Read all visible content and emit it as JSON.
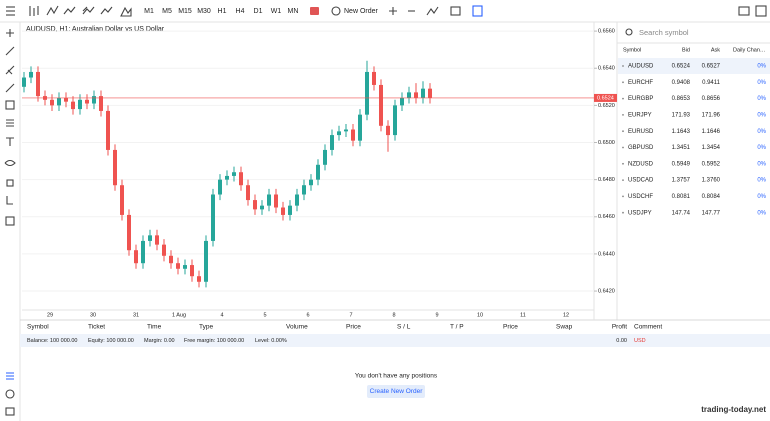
{
  "toolbar": {
    "timeframes": [
      "M1",
      "M5",
      "M15",
      "M30",
      "H1",
      "H4",
      "D1",
      "W1",
      "MN"
    ],
    "new_order": "New Order"
  },
  "chart_data": {
    "type": "candlestick",
    "title": "AUDUSD, H1: Australian Dollar vs US Dollar",
    "x_labels": [
      "29",
      "30",
      "31",
      "1 Aug",
      "4",
      "5",
      "6",
      "7",
      "8",
      "9",
      "10",
      "11",
      "12"
    ],
    "open": [
      0.653,
      0.6535,
      0.6538,
      0.6525,
      0.6523,
      0.652,
      0.6524,
      0.6522,
      0.6518,
      0.6523,
      0.6521,
      0.6525,
      0.6517,
      0.6496,
      0.6477,
      0.6461,
      0.6442,
      0.6435,
      0.6447,
      0.645,
      0.6445,
      0.6439,
      0.6435,
      0.6432,
      0.6434,
      0.6428,
      0.6425,
      0.6447,
      0.6472,
      0.648,
      0.6482,
      0.6484,
      0.6477,
      0.6469,
      0.6464,
      0.6466,
      0.6472,
      0.6465,
      0.6461,
      0.6466,
      0.6472,
      0.6477,
      0.648,
      0.6488,
      0.6496,
      0.6504,
      0.6506,
      0.6507,
      0.6501,
      0.6515,
      0.6538,
      0.6531,
      0.6509,
      0.6504,
      0.652,
      0.6524,
      0.6527,
      0.6524,
      0.6529
    ],
    "high": [
      0.6538,
      0.6541,
      0.6541,
      0.6528,
      0.6526,
      0.6527,
      0.6527,
      0.6525,
      0.6526,
      0.6526,
      0.6528,
      0.6528,
      0.652,
      0.6499,
      0.648,
      0.6464,
      0.6445,
      0.645,
      0.6453,
      0.6453,
      0.6448,
      0.6442,
      0.6438,
      0.6437,
      0.6437,
      0.6431,
      0.645,
      0.6475,
      0.6483,
      0.6485,
      0.6487,
      0.6487,
      0.648,
      0.6472,
      0.6469,
      0.6475,
      0.6475,
      0.6468,
      0.6469,
      0.6475,
      0.648,
      0.6483,
      0.6491,
      0.6499,
      0.6507,
      0.6509,
      0.651,
      0.651,
      0.6518,
      0.6544,
      0.6541,
      0.6534,
      0.6512,
      0.6523,
      0.6527,
      0.653,
      0.6532,
      0.6533,
      0.6532
    ],
    "low": [
      0.6527,
      0.6532,
      0.6522,
      0.652,
      0.6517,
      0.6517,
      0.6519,
      0.6515,
      0.6515,
      0.6518,
      0.6518,
      0.6514,
      0.6493,
      0.6474,
      0.6458,
      0.6439,
      0.6432,
      0.6432,
      0.6444,
      0.6442,
      0.6436,
      0.6432,
      0.6429,
      0.6429,
      0.6425,
      0.6422,
      0.6422,
      0.6444,
      0.6469,
      0.6477,
      0.6479,
      0.6474,
      0.6466,
      0.6461,
      0.6461,
      0.6463,
      0.6462,
      0.6458,
      0.6458,
      0.6463,
      0.6469,
      0.6474,
      0.6477,
      0.6485,
      0.6493,
      0.6501,
      0.6503,
      0.6498,
      0.6498,
      0.6512,
      0.6528,
      0.6506,
      0.6495,
      0.6501,
      0.6517,
      0.6521,
      0.6521,
      0.6521,
      0.6521
    ],
    "close": [
      0.6535,
      0.6538,
      0.6525,
      0.6523,
      0.652,
      0.6524,
      0.6522,
      0.6518,
      0.6523,
      0.6521,
      0.6525,
      0.6517,
      0.6496,
      0.6477,
      0.6461,
      0.6442,
      0.6435,
      0.6447,
      0.645,
      0.6445,
      0.6439,
      0.6435,
      0.6432,
      0.6434,
      0.6428,
      0.6425,
      0.6447,
      0.6472,
      0.648,
      0.6482,
      0.6484,
      0.6477,
      0.6469,
      0.6464,
      0.6466,
      0.6472,
      0.6465,
      0.6461,
      0.6466,
      0.6472,
      0.6477,
      0.648,
      0.6488,
      0.6496,
      0.6504,
      0.6506,
      0.6507,
      0.6501,
      0.6515,
      0.6538,
      0.6531,
      0.6509,
      0.6504,
      0.652,
      0.6524,
      0.6527,
      0.6524,
      0.6529,
      0.6524
    ],
    "up_color": "#26a69a",
    "down_color": "#ef5350",
    "ylim": [
      0.64098,
      0.65649
    ],
    "yticks": [
      {
        "value": 0.656,
        "label": "0.6560"
      },
      {
        "value": 0.654,
        "label": "0.6540"
      },
      {
        "value": 0.652,
        "label": "0.6520"
      },
      {
        "value": 0.65,
        "label": "0.6500"
      },
      {
        "value": 0.648,
        "label": "0.6480"
      },
      {
        "value": 0.646,
        "label": "0.6460"
      },
      {
        "value": 0.644,
        "label": "0.6440"
      },
      {
        "value": 0.642,
        "label": "0.6420"
      }
    ],
    "current_price": 0.6524,
    "grid": true
  },
  "watchlist": {
    "search_placeholder": "Search symbol",
    "columns": [
      "Symbol",
      "Bid",
      "Ask",
      "Daily Chan…"
    ],
    "rows": [
      [
        "AUDUSD",
        "0.6524",
        "0.6527",
        "0%"
      ],
      [
        "EURCHF",
        "0.9408",
        "0.9411",
        "0%"
      ],
      [
        "EURGBP",
        "0.8653",
        "0.8656",
        "0%"
      ],
      [
        "EURJPY",
        "171.93",
        "171.96",
        "0%"
      ],
      [
        "EURUSD",
        "1.1643",
        "1.1646",
        "0%"
      ],
      [
        "GBPUSD",
        "1.3451",
        "1.3454",
        "0%"
      ],
      [
        "NZDUSD",
        "0.5949",
        "0.5952",
        "0%"
      ],
      [
        "USDCAD",
        "1.3757",
        "1.3760",
        "0%"
      ],
      [
        "USDCHF",
        "0.8081",
        "0.8084",
        "0%"
      ],
      [
        "USDJPY",
        "147.74",
        "147.77",
        "0%"
      ]
    ]
  },
  "positions": {
    "columns": [
      "Symbol",
      "Ticket",
      "Time",
      "Type",
      "Volume",
      "Price",
      "S / L",
      "T / P",
      "Price",
      "Swap",
      "Profit",
      "Comment"
    ],
    "balance": [
      "Balance: 100 000.00",
      "Equity: 100 000.00",
      "Margin: 0.00",
      "Free margin: 100 000.00",
      "Level: 0.00%"
    ],
    "profit": "0.00",
    "currency": "USD",
    "empty_message": "You don't have any positions",
    "create_button": "Create New Order"
  },
  "watermark": "trading-today.net"
}
